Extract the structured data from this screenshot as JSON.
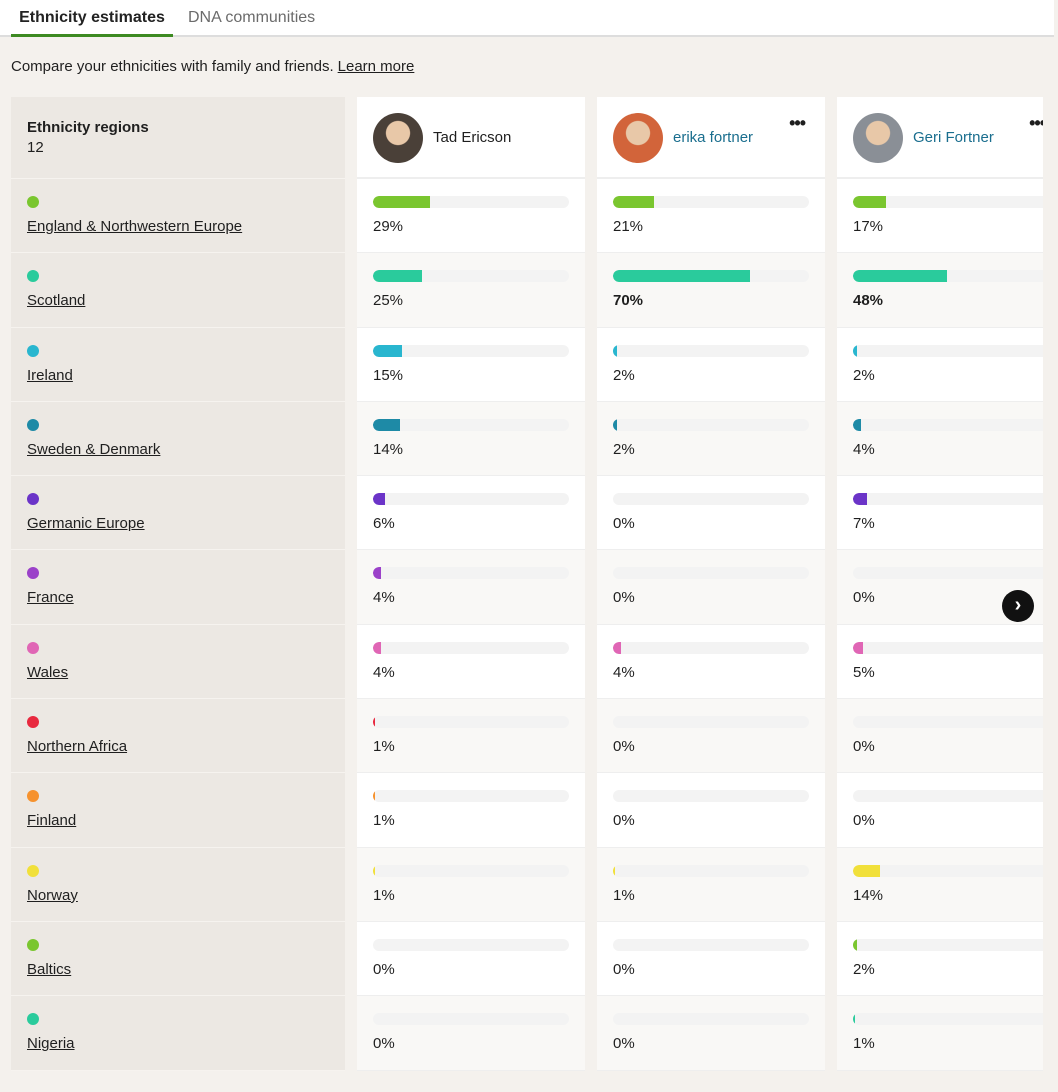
{
  "tabs": [
    {
      "label": "Ethnicity estimates",
      "active": true
    },
    {
      "label": "DNA communities",
      "active": false
    }
  ],
  "intro": {
    "text": "Compare your ethnicities with family and friends.",
    "link": "Learn more"
  },
  "regions_header": {
    "title": "Ethnicity regions",
    "count": "12"
  },
  "regions": [
    {
      "name": "England & Northwestern Europe",
      "color": "#7ac62f"
    },
    {
      "name": "Scotland",
      "color": "#2acb9c"
    },
    {
      "name": "Ireland",
      "color": "#29b6cf"
    },
    {
      "name": "Sweden & Denmark",
      "color": "#1e8aa6"
    },
    {
      "name": "Germanic Europe",
      "color": "#6b34c8"
    },
    {
      "name": "France",
      "color": "#9b41c9"
    },
    {
      "name": "Wales",
      "color": "#e066b5"
    },
    {
      "name": "Northern Africa",
      "color": "#e8293f"
    },
    {
      "name": "Finland",
      "color": "#f6922e"
    },
    {
      "name": "Norway",
      "color": "#f1e03a"
    },
    {
      "name": "Baltics",
      "color": "#7ac62f"
    },
    {
      "name": "Nigeria",
      "color": "#2acb9c"
    }
  ],
  "people": [
    {
      "name": "Tad Ericson",
      "name_color": "#1f1f1f",
      "has_menu": false,
      "avatar_color": "#4a4038",
      "values": [
        29,
        25,
        15,
        14,
        6,
        4,
        4,
        1,
        1,
        1,
        0,
        0
      ],
      "bold": []
    },
    {
      "name": "erika fortner",
      "name_color": "#1a6e8e",
      "has_menu": true,
      "avatar_color": "#d2643a",
      "values": [
        21,
        70,
        2,
        2,
        0,
        0,
        4,
        0,
        0,
        1,
        0,
        0
      ],
      "bold": [
        1
      ]
    },
    {
      "name": "Geri Fortner",
      "name_color": "#1a6e8e",
      "has_menu": true,
      "avatar_color": "#8a8f96",
      "values": [
        17,
        48,
        2,
        4,
        7,
        0,
        5,
        0,
        0,
        14,
        2,
        1
      ],
      "bold": [
        1
      ]
    }
  ],
  "menu_icon": "•••",
  "next_icon": "›"
}
